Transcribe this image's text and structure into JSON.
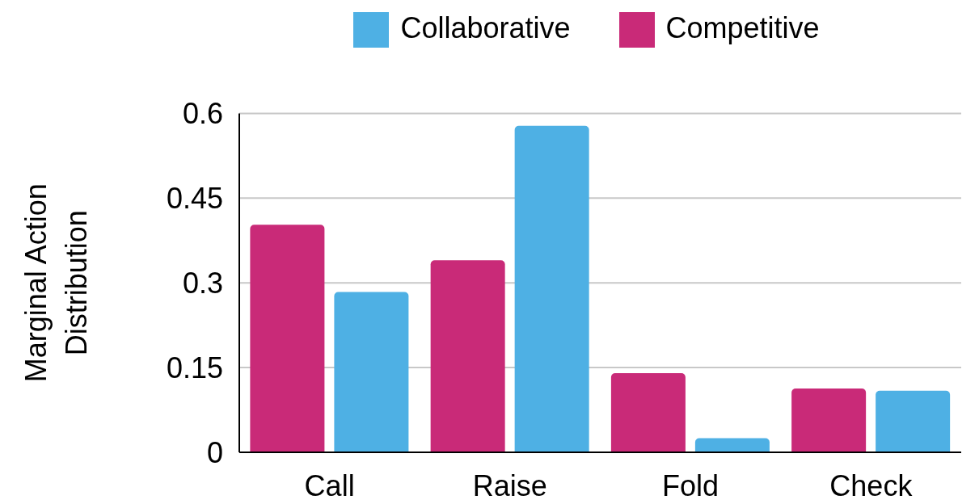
{
  "chart_data": {
    "type": "bar",
    "ylabel": "Marginal Action\nDistribution",
    "categories": [
      "Call",
      "Raise",
      "Fold",
      "Check"
    ],
    "series": [
      {
        "name": "Competitive",
        "color": "#c92a78",
        "values": [
          0.403,
          0.34,
          0.14,
          0.113
        ]
      },
      {
        "name": "Collaborative",
        "color": "#4eb0e4",
        "values": [
          0.284,
          0.578,
          0.025,
          0.109
        ]
      }
    ],
    "ylim": [
      0,
      0.6
    ],
    "yticks": [
      0,
      0.15,
      0.3,
      0.45,
      0.6
    ],
    "grid": "y",
    "legend": "top"
  }
}
